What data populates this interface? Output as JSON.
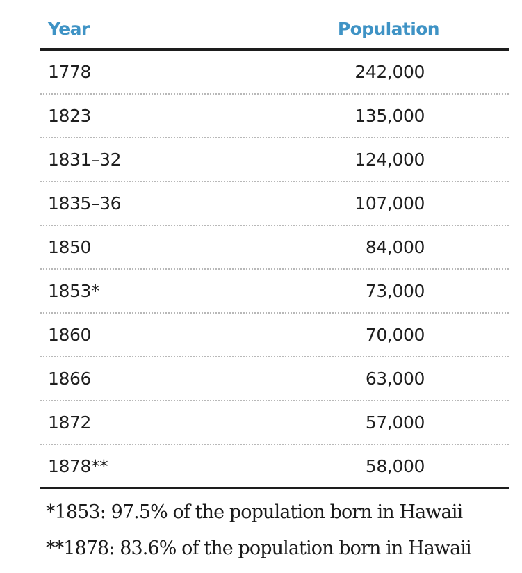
{
  "table": {
    "headers": {
      "year": "Year",
      "population": "Population"
    },
    "rows": [
      {
        "year": "1778",
        "population": "242,000"
      },
      {
        "year": "1823",
        "population": "135,000"
      },
      {
        "year": "1831–32",
        "population": "124,000"
      },
      {
        "year": "1835–36",
        "population": "107,000"
      },
      {
        "year": "1850",
        "population": "84,000"
      },
      {
        "year": "1853*",
        "population": "73,000"
      },
      {
        "year": "1860",
        "population": "70,000"
      },
      {
        "year": "1866",
        "population": "63,000"
      },
      {
        "year": "1872",
        "population": "57,000"
      },
      {
        "year": "1878**",
        "population": "58,000"
      }
    ]
  },
  "footnotes": [
    "*1853: 97.5% of the population born in Hawaii",
    "**1878: 83.6% of the population born in Hawaii"
  ],
  "colors": {
    "header_text": "#3f93c5",
    "rule": "#1d1d1d",
    "dotted_divider": "#b8b8b8"
  }
}
